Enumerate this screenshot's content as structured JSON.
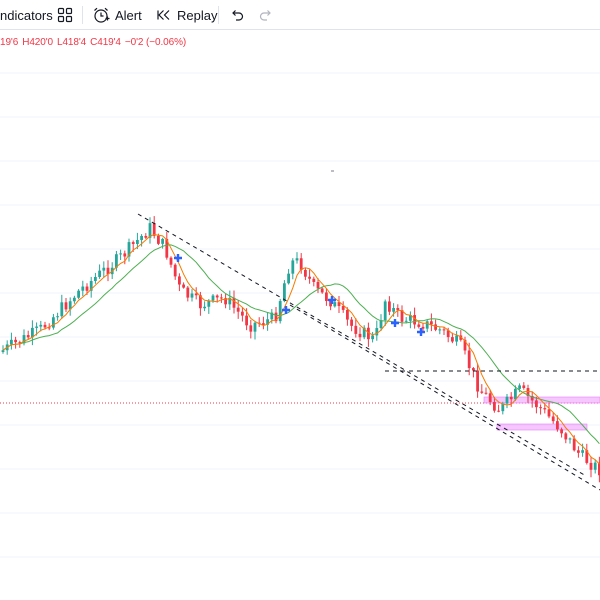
{
  "toolbar": {
    "indicators_label": "ndicators",
    "alert_label": "Alert",
    "replay_label": "Replay"
  },
  "legend": {
    "open": "19'6",
    "high": "H420'0",
    "low": "L418'4",
    "close": "C419'4",
    "change": "−0'2 (−0.06%)"
  },
  "colors": {
    "up": "#26a69a",
    "down": "#f23645",
    "ma_fast": "#f57c00",
    "ma_slow": "#4caf50",
    "marker": "#2962ff",
    "zone": "#ea80fc"
  }
}
